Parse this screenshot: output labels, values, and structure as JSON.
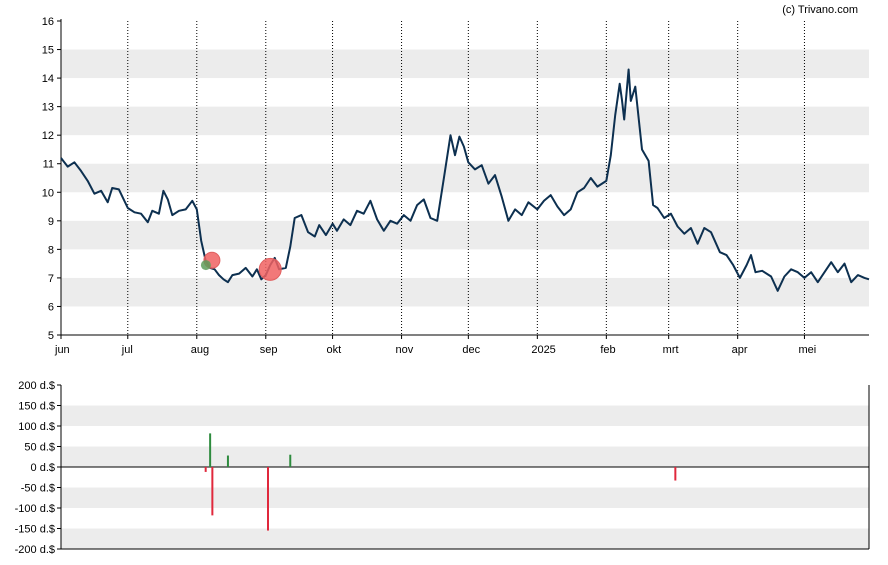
{
  "watermark": "(c) Trivano.com",
  "colors": {
    "price_line": "#0d3050",
    "band": "#ececec",
    "buy": "#2e8b3e",
    "sell": "#e0283c",
    "sell_marker": "#f06262",
    "buy_marker": "#5e9e5a",
    "axis": "#000000",
    "month_grid": "#000000"
  },
  "chart_data": [
    {
      "type": "line",
      "ylim": [
        5,
        16
      ],
      "yticks": [
        "5",
        "6",
        "7",
        "8",
        "9",
        "10",
        "11",
        "12",
        "13",
        "14",
        "15",
        "16"
      ],
      "grid": "alternating horizontal bands, dotted vertical month lines",
      "months": [
        {
          "label": "jun",
          "date": "2024-06-01"
        },
        {
          "label": "jul",
          "date": "2024-07-01"
        },
        {
          "label": "aug",
          "date": "2024-08-01"
        },
        {
          "label": "sep",
          "date": "2024-09-01"
        },
        {
          "label": "okt",
          "date": "2024-10-01"
        },
        {
          "label": "nov",
          "date": "2024-11-01"
        },
        {
          "label": "dec",
          "date": "2024-12-01"
        },
        {
          "label": "2025",
          "date": "2025-01-01"
        },
        {
          "label": "feb",
          "date": "2025-02-01"
        },
        {
          "label": "mrt",
          "date": "2025-03-01"
        },
        {
          "label": "apr",
          "date": "2025-04-01"
        },
        {
          "label": "mei",
          "date": "2025-05-01"
        }
      ],
      "x_range": [
        "2024-06-01",
        "2025-05-30"
      ],
      "series": [
        {
          "points": [
            [
              "2024-06-01",
              11.2
            ],
            [
              "2024-06-04",
              10.9
            ],
            [
              "2024-06-07",
              11.05
            ],
            [
              "2024-06-10",
              10.75
            ],
            [
              "2024-06-13",
              10.4
            ],
            [
              "2024-06-16",
              9.95
            ],
            [
              "2024-06-19",
              10.05
            ],
            [
              "2024-06-22",
              9.65
            ],
            [
              "2024-06-24",
              10.15
            ],
            [
              "2024-06-27",
              10.1
            ],
            [
              "2024-07-01",
              9.45
            ],
            [
              "2024-07-04",
              9.3
            ],
            [
              "2024-07-07",
              9.25
            ],
            [
              "2024-07-10",
              8.95
            ],
            [
              "2024-07-12",
              9.35
            ],
            [
              "2024-07-15",
              9.25
            ],
            [
              "2024-07-17",
              10.05
            ],
            [
              "2024-07-19",
              9.75
            ],
            [
              "2024-07-21",
              9.2
            ],
            [
              "2024-07-24",
              9.35
            ],
            [
              "2024-07-27",
              9.4
            ],
            [
              "2024-07-30",
              9.7
            ],
            [
              "2024-08-01",
              9.4
            ],
            [
              "2024-08-03",
              8.3
            ],
            [
              "2024-08-05",
              7.6
            ],
            [
              "2024-08-07",
              7.35
            ],
            [
              "2024-08-09",
              7.3
            ],
            [
              "2024-08-11",
              7.1
            ],
            [
              "2024-08-13",
              6.95
            ],
            [
              "2024-08-15",
              6.85
            ],
            [
              "2024-08-17",
              7.1
            ],
            [
              "2024-08-20",
              7.15
            ],
            [
              "2024-08-23",
              7.35
            ],
            [
              "2024-08-26",
              7.05
            ],
            [
              "2024-08-28",
              7.3
            ],
            [
              "2024-08-30",
              6.95
            ],
            [
              "2024-09-01",
              7.1
            ],
            [
              "2024-09-03",
              7.45
            ],
            [
              "2024-09-05",
              7.7
            ],
            [
              "2024-09-07",
              7.3
            ],
            [
              "2024-09-10",
              7.35
            ],
            [
              "2024-09-12",
              8.1
            ],
            [
              "2024-09-14",
              9.1
            ],
            [
              "2024-09-17",
              9.2
            ],
            [
              "2024-09-20",
              8.6
            ],
            [
              "2024-09-23",
              8.45
            ],
            [
              "2024-09-25",
              8.85
            ],
            [
              "2024-09-28",
              8.5
            ],
            [
              "2024-10-01",
              8.9
            ],
            [
              "2024-10-03",
              8.65
            ],
            [
              "2024-10-06",
              9.05
            ],
            [
              "2024-10-09",
              8.85
            ],
            [
              "2024-10-12",
              9.35
            ],
            [
              "2024-10-15",
              9.25
            ],
            [
              "2024-10-18",
              9.7
            ],
            [
              "2024-10-21",
              9.05
            ],
            [
              "2024-10-24",
              8.65
            ],
            [
              "2024-10-27",
              9.0
            ],
            [
              "2024-10-30",
              8.9
            ],
            [
              "2024-11-02",
              9.2
            ],
            [
              "2024-11-05",
              9.0
            ],
            [
              "2024-11-08",
              9.55
            ],
            [
              "2024-11-11",
              9.75
            ],
            [
              "2024-11-14",
              9.1
            ],
            [
              "2024-11-17",
              9.0
            ],
            [
              "2024-11-20",
              10.5
            ],
            [
              "2024-11-23",
              12.0
            ],
            [
              "2024-11-25",
              11.3
            ],
            [
              "2024-11-27",
              11.95
            ],
            [
              "2024-11-29",
              11.6
            ],
            [
              "2024-12-01",
              11.05
            ],
            [
              "2024-12-04",
              10.8
            ],
            [
              "2024-12-07",
              10.95
            ],
            [
              "2024-12-10",
              10.3
            ],
            [
              "2024-12-13",
              10.6
            ],
            [
              "2024-12-16",
              9.85
            ],
            [
              "2024-12-19",
              9.0
            ],
            [
              "2024-12-22",
              9.4
            ],
            [
              "2024-12-25",
              9.2
            ],
            [
              "2024-12-28",
              9.65
            ],
            [
              "2025-01-01",
              9.4
            ],
            [
              "2025-01-04",
              9.7
            ],
            [
              "2025-01-07",
              9.9
            ],
            [
              "2025-01-10",
              9.5
            ],
            [
              "2025-01-13",
              9.2
            ],
            [
              "2025-01-16",
              9.4
            ],
            [
              "2025-01-19",
              10.0
            ],
            [
              "2025-01-22",
              10.15
            ],
            [
              "2025-01-25",
              10.5
            ],
            [
              "2025-01-28",
              10.2
            ],
            [
              "2025-02-01",
              10.4
            ],
            [
              "2025-02-03",
              11.3
            ],
            [
              "2025-02-05",
              12.7
            ],
            [
              "2025-02-07",
              13.8
            ],
            [
              "2025-02-08",
              13.25
            ],
            [
              "2025-02-09",
              12.55
            ],
            [
              "2025-02-11",
              14.3
            ],
            [
              "2025-02-12",
              13.2
            ],
            [
              "2025-02-14",
              13.7
            ],
            [
              "2025-02-17",
              11.5
            ],
            [
              "2025-02-20",
              11.1
            ],
            [
              "2025-02-22",
              9.55
            ],
            [
              "2025-02-24",
              9.45
            ],
            [
              "2025-02-27",
              9.1
            ],
            [
              "2025-03-02",
              9.25
            ],
            [
              "2025-03-05",
              8.8
            ],
            [
              "2025-03-08",
              8.55
            ],
            [
              "2025-03-11",
              8.75
            ],
            [
              "2025-03-14",
              8.2
            ],
            [
              "2025-03-17",
              8.75
            ],
            [
              "2025-03-20",
              8.6
            ],
            [
              "2025-03-24",
              7.9
            ],
            [
              "2025-03-27",
              7.8
            ],
            [
              "2025-03-30",
              7.45
            ],
            [
              "2025-04-02",
              7.0
            ],
            [
              "2025-04-05",
              7.45
            ],
            [
              "2025-04-07",
              7.8
            ],
            [
              "2025-04-09",
              7.2
            ],
            [
              "2025-04-12",
              7.25
            ],
            [
              "2025-04-16",
              7.05
            ],
            [
              "2025-04-19",
              6.55
            ],
            [
              "2025-04-22",
              7.05
            ],
            [
              "2025-04-25",
              7.3
            ],
            [
              "2025-04-28",
              7.2
            ],
            [
              "2025-05-01",
              7.0
            ],
            [
              "2025-05-04",
              7.2
            ],
            [
              "2025-05-07",
              6.85
            ],
            [
              "2025-05-10",
              7.2
            ],
            [
              "2025-05-13",
              7.55
            ],
            [
              "2025-05-16",
              7.2
            ],
            [
              "2025-05-19",
              7.5
            ],
            [
              "2025-05-22",
              6.85
            ],
            [
              "2025-05-25",
              7.1
            ],
            [
              "2025-05-28",
              7.0
            ],
            [
              "2025-05-30",
              6.95
            ]
          ]
        }
      ],
      "markers": [
        {
          "date": "2024-08-06",
          "y": 7.55,
          "kind": "sell"
        },
        {
          "date": "2024-08-06",
          "y": 7.45,
          "kind": "buy"
        },
        {
          "date": "2024-09-03",
          "y": 7.3,
          "kind": "sell"
        }
      ]
    },
    {
      "type": "bar",
      "ylim": [
        -200,
        200
      ],
      "yticks": [
        "200 d.$",
        "150 d.$",
        "100 d.$",
        "50 d.$",
        "0 d.$",
        "-50 d.$",
        "-100 d.$",
        "-150 d.$",
        "-200 d.$"
      ],
      "bars": [
        {
          "date": "2024-08-05",
          "value": -12,
          "kind": "sell"
        },
        {
          "date": "2024-08-07",
          "value": 82,
          "kind": "buy"
        },
        {
          "date": "2024-08-08",
          "value": -118,
          "kind": "sell"
        },
        {
          "date": "2024-08-15",
          "value": 28,
          "kind": "buy"
        },
        {
          "date": "2024-09-02",
          "value": -155,
          "kind": "sell"
        },
        {
          "date": "2024-09-12",
          "value": 30,
          "kind": "buy"
        },
        {
          "date": "2025-03-04",
          "value": -33,
          "kind": "sell"
        }
      ]
    }
  ]
}
